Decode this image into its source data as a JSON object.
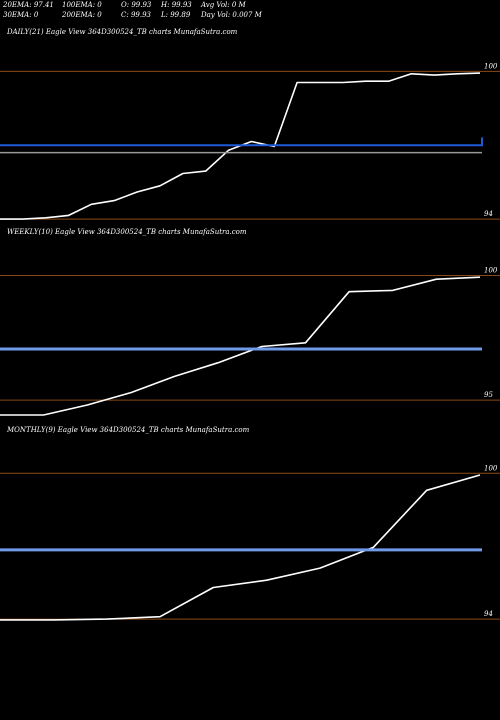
{
  "header": {
    "ema20": "20EMA: 97.41",
    "ema100": "100EMA: 0",
    "open": "O: 99.93",
    "high": "H: 99.93",
    "avg_vol": "Avg Vol: 0  M",
    "ema30": "30EMA: 0",
    "ema200": "200EMA: 0",
    "close": "C: 99.93",
    "low": "L: 99.89",
    "day_vol": "Day Vol: 0.007 M"
  },
  "colors": {
    "background": "#000000",
    "price_line": "#ffffff",
    "ema_line": "#1f5bd6",
    "ema_line_light": "#6f9be8",
    "gridline": "#8b4a14",
    "ref_line": "#999999"
  },
  "chart_data": [
    {
      "type": "line",
      "title": "DAILY(21) Eagle  View  364D300524_TB charts MunafaSutra.com",
      "yticks": [
        {
          "label": "100",
          "value": 100
        },
        {
          "label": "94",
          "value": 94
        }
      ],
      "ylim": [
        93.8,
        100.3
      ],
      "series": [
        {
          "role": "price",
          "values": [
            94.0,
            94.0,
            94.05,
            94.15,
            94.6,
            94.75,
            95.1,
            95.35,
            95.85,
            95.95,
            96.8,
            97.15,
            96.95,
            99.55,
            99.55,
            99.55,
            99.6,
            99.6,
            99.9,
            99.85,
            99.9,
            99.93
          ]
        },
        {
          "role": "ema",
          "values": [
            97.0,
            97.0,
            97.0,
            97.0,
            97.0,
            97.0,
            97.0,
            97.0,
            97.0,
            97.0,
            97.0,
            97.0,
            97.03,
            97.06,
            97.09,
            97.12,
            97.15,
            97.18,
            97.21,
            97.24,
            97.28,
            97.32
          ]
        },
        {
          "role": "reference",
          "values": [
            96.7,
            96.7
          ]
        }
      ]
    },
    {
      "type": "line",
      "title": "WEEKLY(10) Eagle  View  364D300524_TB charts MunafaSutra.com",
      "yticks": [
        {
          "label": "100",
          "value": 100
        },
        {
          "label": "95",
          "value": 95
        }
      ],
      "ylim": [
        94.2,
        100.3
      ],
      "series": [
        {
          "role": "price",
          "values": [
            94.4,
            94.4,
            94.8,
            95.3,
            95.95,
            96.5,
            97.15,
            97.3,
            99.35,
            99.4,
            99.85,
            99.93
          ]
        },
        {
          "role": "ema",
          "values": [
            97.05,
            97.05
          ]
        }
      ]
    },
    {
      "type": "line",
      "title": "MONTHLY(9) Eagle  View  364D300524_TB charts MunafaSutra.com",
      "yticks": [
        {
          "label": "100",
          "value": 100
        },
        {
          "label": "94",
          "value": 94
        }
      ],
      "ylim": [
        93.8,
        100.3
      ],
      "series": [
        {
          "role": "price",
          "values": [
            93.97,
            93.97,
            94.0,
            94.1,
            95.3,
            95.6,
            96.1,
            96.95,
            99.3,
            99.93
          ]
        },
        {
          "role": "ema",
          "values": [
            96.85,
            96.85
          ]
        }
      ]
    }
  ]
}
